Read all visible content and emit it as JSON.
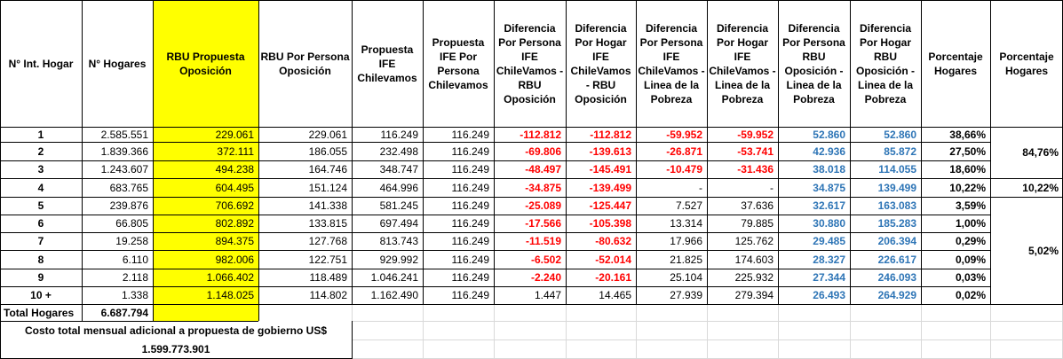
{
  "headers": [
    "N° Int. Hogar",
    "N° Hogares",
    "RBU Propuesta Oposición",
    "RBU Por Persona Oposición",
    "Propuesta IFE Chilevamos",
    "Propuesta IFE Por Persona Chilevamos",
    "Diferencia Por Persona IFE ChileVamos - RBU Oposición",
    "Diferencia Por Hogar IFE ChileVamos - RBU Oposición",
    "Diferencia Por Persona IFE ChileVamos - Linea de la Pobreza",
    "Diferencia Por Hogar IFE ChileVamos - Linea de la Pobreza",
    "Diferencia Por Persona RBU Oposición - Linea de la Pobreza",
    "Diferencia Por Hogar RBU Oposición - Linea de la Pobreza",
    "Porcentaje Hogares",
    "Porcentaje Hogares"
  ],
  "rows": [
    [
      "1",
      "2.585.551",
      "229.061",
      "229.061",
      "116.249",
      "116.249",
      "-112.812",
      "-112.812",
      "-59.952",
      "-59.952",
      "52.860",
      "52.860",
      "38,66%"
    ],
    [
      "2",
      "1.839.366",
      "372.111",
      "186.055",
      "232.498",
      "116.249",
      "-69.806",
      "-139.613",
      "-26.871",
      "-53.741",
      "42.936",
      "85.872",
      "27,50%"
    ],
    [
      "3",
      "1.243.607",
      "494.238",
      "164.746",
      "348.747",
      "116.249",
      "-48.497",
      "-145.491",
      "-10.479",
      "-31.436",
      "38.018",
      "114.055",
      "18,60%"
    ],
    [
      "4",
      "683.765",
      "604.495",
      "151.124",
      "464.996",
      "116.249",
      "-34.875",
      "-139.499",
      "-",
      "-",
      "34.875",
      "139.499",
      "10,22%"
    ],
    [
      "5",
      "239.876",
      "706.692",
      "141.338",
      "581.245",
      "116.249",
      "-25.089",
      "-125.447",
      "7.527",
      "37.636",
      "32.617",
      "163.083",
      "3,59%"
    ],
    [
      "6",
      "66.805",
      "802.892",
      "133.815",
      "697.494",
      "116.249",
      "-17.566",
      "-105.398",
      "13.314",
      "79.885",
      "30.880",
      "185.283",
      "1,00%"
    ],
    [
      "7",
      "19.258",
      "894.375",
      "127.768",
      "813.743",
      "116.249",
      "-11.519",
      "-80.632",
      "17.966",
      "125.762",
      "29.485",
      "206.394",
      "0,29%"
    ],
    [
      "8",
      "6.110",
      "982.006",
      "122.751",
      "929.992",
      "116.249",
      "-6.502",
      "-52.014",
      "21.825",
      "174.603",
      "28.327",
      "226.617",
      "0,09%"
    ],
    [
      "9",
      "2.118",
      "1.066.402",
      "118.489",
      "1.046.241",
      "116.249",
      "-2.240",
      "-20.161",
      "25.104",
      "225.932",
      "27.344",
      "246.093",
      "0,03%"
    ],
    [
      "10 +",
      "1.338",
      "1.148.025",
      "114.802",
      "1.162.490",
      "116.249",
      "1.447",
      "14.465",
      "27.939",
      "279.394",
      "26.493",
      "264.929",
      "0,02%"
    ]
  ],
  "groups": [
    {
      "label": "84,76%"
    },
    {
      "label": "10,22%"
    },
    {
      "label": "5,02%"
    }
  ],
  "total": {
    "label": "Total Hogares",
    "value": "6.687.794"
  },
  "footer": {
    "line1": "Costo total mensual adicional a propuesta de gobierno US$",
    "line2": "1.599.773.901"
  },
  "colors": {
    "highlight": "#ffff00",
    "negative": "#ff0000",
    "positive": "#2e75b6"
  }
}
